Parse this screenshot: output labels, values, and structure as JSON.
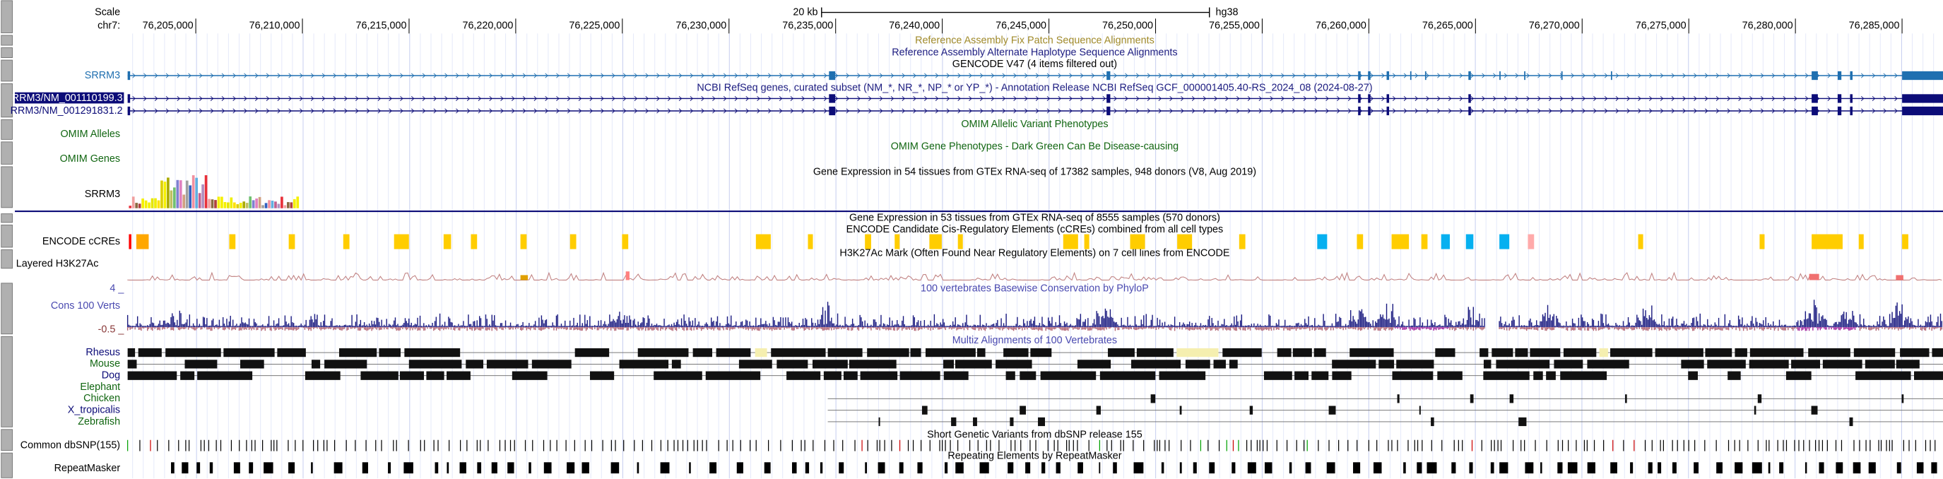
{
  "ruler": {
    "scale_label": "Scale",
    "chrom": "chr7:",
    "scale_bar": "20 kb",
    "assembly": "hg38",
    "positions": [
      "76,205,000",
      "76,210,000",
      "76,215,000",
      "76,220,000",
      "76,225,000",
      "76,230,000",
      "76,235,000",
      "76,240,000",
      "76,245,000",
      "76,250,000",
      "76,255,000",
      "76,260,000",
      "76,265,000",
      "76,270,000",
      "76,275,000",
      "76,280,000",
      "76,285,000"
    ]
  },
  "tracks": {
    "fix_patch": "Reference Assembly Fix Patch Sequence Alignments",
    "alt_haplotype": "Reference Assembly Alternate Haplotype Sequence Alignments",
    "gencode": {
      "title": "GENCODE V47 (4 items filtered out)",
      "label": "SRRM3"
    },
    "refseq": {
      "title": "NCBI RefSeq genes, curated subset (NM_*, NR_*, NP_* or YP_*) - Annotation Release NCBI RefSeq GCF_000001405.40-RS_2024_08 (2024-08-27)",
      "labels": [
        "RRM3/NM_001110199.3",
        "RRM3/NM_001291831.2"
      ]
    },
    "omim_alleles": {
      "title": "OMIM Allelic Variant Phenotypes",
      "label": "OMIM Alleles"
    },
    "omim_genes": {
      "title": "OMIM Gene Phenotypes - Dark Green Can Be Disease-causing",
      "label": "OMIM Genes"
    },
    "gtex": {
      "title": "Gene Expression in 54 tissues from GTEx RNA-seq of 17382 samples, 948 donors (V8, Aug 2019)",
      "label": "SRRM3"
    },
    "gtex2": "Gene Expression in 53 tissues from GTEx RNA-seq of 8555 samples (570 donors)",
    "ccre": {
      "title": "ENCODE Candidate Cis-Regulatory Elements (cCREs) combined from all cell types",
      "label": "ENCODE cCREs"
    },
    "h3k27ac": {
      "title": "H3K27Ac Mark (Often Found Near Regulatory Elements) on 7 cell lines from ENCODE",
      "label": "Layered H3K27Ac"
    },
    "phylop": {
      "title": "100 vertebrates Basewise Conservation by PhyloP",
      "label": "Cons 100 Verts",
      "axis_labels": [
        "4 _",
        "-0.5 _"
      ]
    },
    "multiz": {
      "title": "Multiz Alignments of 100 Vertebrates",
      "species": [
        "Rhesus",
        "Mouse",
        "Dog",
        "Elephant",
        "Chicken",
        "X_tropicalis",
        "Zebrafish"
      ]
    },
    "dbsnp": {
      "title": "Short Genetic Variants from dbSNP release 155",
      "label": "Common dbSNP(155)"
    },
    "repeatmasker": {
      "title": "Repeating Elements by RepeatMasker",
      "label": "RepeatMasker"
    }
  }
}
